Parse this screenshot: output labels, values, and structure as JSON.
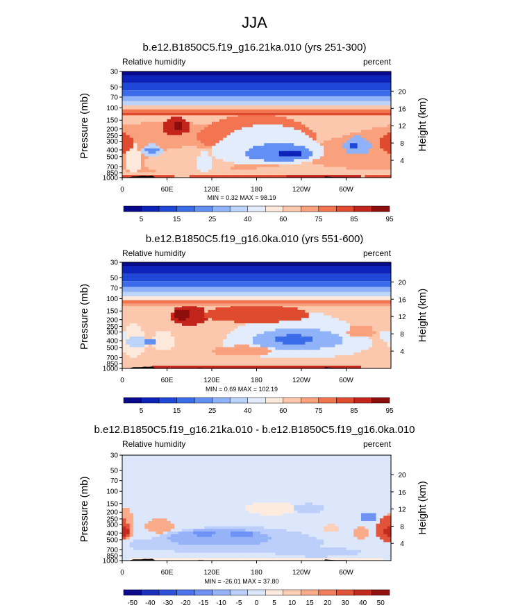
{
  "page": {
    "title": "JJA"
  },
  "palettes": {
    "rh": [
      "#08088c",
      "#0d22b8",
      "#1f48d8",
      "#3a6cea",
      "#628ff4",
      "#8fb2f8",
      "#bcd3fa",
      "#e3ecfb",
      "#fde9dc",
      "#fcc8ad",
      "#f9a07d",
      "#f27450",
      "#e04a2f",
      "#c3241b",
      "#8e0d0d"
    ],
    "diff": [
      "#0a0a8a",
      "#1a2fbd",
      "#2f52dc",
      "#4b73ec",
      "#6f93f4",
      "#97b3f8",
      "#bccffa",
      "#dde7fb",
      "#fdebe0",
      "#fcd0b8",
      "#f9ab8a",
      "#f17f5c",
      "#e2533a",
      "#c52a20",
      "#911010"
    ]
  },
  "chart_data": [
    {
      "type": "heatmap",
      "title": "b.e12.B1850C5.f19_g16.21ka.010 (yrs 251-300)",
      "left_label": "Relative humidity",
      "right_label": "percent",
      "ylabel": "Pressure (mb)",
      "ylabel_right": "Height (km)",
      "x_ticks": [
        "0",
        "60E",
        "120E",
        "180",
        "120W",
        "60W"
      ],
      "x_tick_lons": [
        0,
        60,
        120,
        180,
        240,
        300
      ],
      "xlim": [
        0,
        360
      ],
      "y_ticks": [
        "30",
        "50",
        "70",
        "100",
        "150",
        "200",
        "250",
        "300",
        "400",
        "500",
        "700",
        "850",
        "1000"
      ],
      "y_tick_values": [
        30,
        50,
        70,
        100,
        150,
        200,
        250,
        300,
        400,
        500,
        700,
        850,
        1000
      ],
      "ylim": [
        30,
        1000
      ],
      "height_ticks": [
        "20",
        "16",
        "12",
        "8",
        "4"
      ],
      "height_tick_values": [
        20,
        16,
        12,
        8,
        4
      ],
      "stats": "MIN =   0.32  MAX =  98.19",
      "colorbar_labels": [
        "5",
        "15",
        "25",
        "40",
        "60",
        "75",
        "85",
        "95"
      ],
      "palette": "rh",
      "background_level": 9,
      "features": [
        {
          "lon": 60,
          "p": 490,
          "rlon": 180,
          "rp": 330,
          "v": 10
        },
        {
          "lon": 90,
          "p": 620,
          "rlon": 60,
          "rp": 260,
          "v": 9
        },
        {
          "lon": 40,
          "p": 410,
          "rlon": 14,
          "rp": 80,
          "v": 6
        },
        {
          "lon": 40,
          "p": 410,
          "rlon": 8,
          "rp": 40,
          "v": 4
        },
        {
          "lon": 15,
          "p": 600,
          "rlon": 10,
          "rp": 280,
          "v": 8
        },
        {
          "lon": 180,
          "p": 260,
          "rlon": 80,
          "rp": 140,
          "v": 11
        },
        {
          "lon": 72,
          "p": 190,
          "rlon": 18,
          "rp": 55,
          "v": 13
        },
        {
          "lon": 75,
          "p": 180,
          "rlon": 7,
          "rp": 30,
          "v": 14
        },
        {
          "lon": 195,
          "p": 420,
          "rlon": 75,
          "rp": 250,
          "v": 7
        },
        {
          "lon": 210,
          "p": 450,
          "rlon": 45,
          "rp": 130,
          "v": 4
        },
        {
          "lon": 225,
          "p": 460,
          "rlon": 18,
          "rp": 50,
          "v": 1
        },
        {
          "lon": 110,
          "p": 620,
          "rlon": 10,
          "rp": 200,
          "v": 7
        },
        {
          "lon": 360,
          "p": 330,
          "rlon": 14,
          "rp": 110,
          "v": 12
        },
        {
          "lon": 315,
          "p": 360,
          "rlon": 18,
          "rp": 110,
          "v": 5
        },
        {
          "lon": 310,
          "p": 360,
          "rlon": 6,
          "rp": 40,
          "v": 2
        },
        {
          "lon": 180,
          "p": 950,
          "rlon": 90,
          "rp": 70,
          "v": 12
        },
        {
          "lon": 30,
          "p": 960,
          "rlon": 40,
          "rp": 60,
          "v": 12
        },
        {
          "lon": 270,
          "p": 960,
          "rlon": 50,
          "rp": 50,
          "v": 13
        },
        {
          "lon": 350,
          "p": 950,
          "rlon": 25,
          "rp": 60,
          "v": 12
        }
      ],
      "top_band": [
        {
          "p": 34,
          "v": 0
        },
        {
          "p": 44,
          "v": 1
        },
        {
          "p": 56,
          "v": 2
        },
        {
          "p": 68,
          "v": 3
        },
        {
          "p": 80,
          "v": 5
        },
        {
          "p": 92,
          "v": 6
        },
        {
          "p": 105,
          "v": 9
        },
        {
          "p": 118,
          "v": 11
        },
        {
          "p": 128,
          "v": 12
        }
      ],
      "topography": [
        [
          10,
          980
        ],
        [
          15,
          960
        ],
        [
          20,
          960
        ],
        [
          25,
          945
        ],
        [
          30,
          945
        ],
        [
          35,
          950
        ],
        [
          40,
          940
        ],
        [
          45,
          1000
        ],
        [
          270,
          1000
        ],
        [
          272,
          960
        ],
        [
          278,
          975
        ],
        [
          285,
          985
        ],
        [
          300,
          985
        ],
        [
          305,
          1000
        ]
      ]
    },
    {
      "type": "heatmap",
      "title": "b.e12.B1850C5.f19_g16.0ka.010 (yrs 551-600)",
      "left_label": "Relative humidity",
      "right_label": "percent",
      "ylabel": "Pressure (mb)",
      "ylabel_right": "Height (km)",
      "x_ticks": [
        "0",
        "60E",
        "120E",
        "180",
        "120W",
        "60W"
      ],
      "x_tick_lons": [
        0,
        60,
        120,
        180,
        240,
        300
      ],
      "xlim": [
        0,
        360
      ],
      "y_ticks": [
        "30",
        "50",
        "70",
        "100",
        "150",
        "200",
        "250",
        "300",
        "400",
        "500",
        "700",
        "850",
        "1000"
      ],
      "y_tick_values": [
        30,
        50,
        70,
        100,
        150,
        200,
        250,
        300,
        400,
        500,
        700,
        850,
        1000
      ],
      "ylim": [
        30,
        1000
      ],
      "height_ticks": [
        "20",
        "16",
        "12",
        "8",
        "4"
      ],
      "height_tick_values": [
        20,
        16,
        12,
        8,
        4
      ],
      "stats": "MIN =   0.69  MAX = 102.19",
      "colorbar_labels": [
        "5",
        "15",
        "25",
        "40",
        "60",
        "75",
        "85",
        "95"
      ],
      "palette": "rh",
      "background_level": 9,
      "features": [
        {
          "lon": 15,
          "p": 450,
          "rlon": 18,
          "rp": 230,
          "v": 8
        },
        {
          "lon": 55,
          "p": 420,
          "rlon": 14,
          "rp": 140,
          "v": 8
        },
        {
          "lon": 20,
          "p": 420,
          "rlon": 15,
          "rp": 70,
          "v": 6
        },
        {
          "lon": 38,
          "p": 420,
          "rlon": 7,
          "rp": 40,
          "v": 4
        },
        {
          "lon": 235,
          "p": 430,
          "rlon": 100,
          "rp": 280,
          "v": 7
        },
        {
          "lon": 235,
          "p": 400,
          "rlon": 60,
          "rp": 140,
          "v": 5
        },
        {
          "lon": 230,
          "p": 390,
          "rlon": 25,
          "rp": 60,
          "v": 3
        },
        {
          "lon": 90,
          "p": 180,
          "rlon": 25,
          "rp": 60,
          "v": 13
        },
        {
          "lon": 80,
          "p": 170,
          "rlon": 12,
          "rp": 30,
          "v": 14
        },
        {
          "lon": 180,
          "p": 170,
          "rlon": 70,
          "rp": 50,
          "v": 12
        },
        {
          "lon": 160,
          "p": 570,
          "rlon": 40,
          "rp": 100,
          "v": 10
        },
        {
          "lon": 180,
          "p": 960,
          "rlon": 140,
          "rp": 60,
          "v": 13
        },
        {
          "lon": 320,
          "p": 300,
          "rlon": 18,
          "rp": 60,
          "v": 10
        },
        {
          "lon": 355,
          "p": 350,
          "rlon": 12,
          "rp": 60,
          "v": 7
        }
      ],
      "top_band": [
        {
          "p": 34,
          "v": 0
        },
        {
          "p": 44,
          "v": 1
        },
        {
          "p": 56,
          "v": 2
        },
        {
          "p": 68,
          "v": 3
        },
        {
          "p": 80,
          "v": 5
        },
        {
          "p": 92,
          "v": 6
        },
        {
          "p": 105,
          "v": 8
        },
        {
          "p": 118,
          "v": 11
        },
        {
          "p": 128,
          "v": 10
        }
      ],
      "topography": [
        [
          10,
          990
        ],
        [
          15,
          960
        ],
        [
          25,
          960
        ],
        [
          30,
          945
        ],
        [
          35,
          950
        ],
        [
          40,
          940
        ],
        [
          45,
          1000
        ],
        [
          100,
          1000
        ],
        [
          102,
          985
        ],
        [
          108,
          985
        ],
        [
          110,
          990
        ],
        [
          125,
          990
        ],
        [
          128,
          1000
        ],
        [
          270,
          1000
        ],
        [
          272,
          960
        ],
        [
          278,
          975
        ],
        [
          285,
          985
        ],
        [
          300,
          985
        ],
        [
          305,
          1000
        ]
      ]
    },
    {
      "type": "heatmap",
      "title": "b.e12.B1850C5.f19_g16.21ka.010 - b.e12.B1850C5.f19_g16.0ka.010",
      "left_label": "Relative humidity",
      "right_label": "percent",
      "ylabel": "Pressure (mb)",
      "ylabel_right": "Height (km)",
      "x_ticks": [
        "0",
        "60E",
        "120E",
        "180",
        "120W",
        "60W"
      ],
      "x_tick_lons": [
        0,
        60,
        120,
        180,
        240,
        300
      ],
      "xlim": [
        0,
        360
      ],
      "y_ticks": [
        "30",
        "50",
        "70",
        "100",
        "150",
        "200",
        "250",
        "300",
        "400",
        "500",
        "700",
        "850",
        "1000"
      ],
      "y_tick_values": [
        30,
        50,
        70,
        100,
        150,
        200,
        250,
        300,
        400,
        500,
        700,
        850,
        1000
      ],
      "ylim": [
        30,
        1000
      ],
      "height_ticks": [
        "20",
        "16",
        "12",
        "8",
        "4"
      ],
      "height_tick_values": [
        20,
        16,
        12,
        8,
        4
      ],
      "stats": "MIN = -26.01  MAX =  37.80",
      "colorbar_labels": [
        "-50",
        "-40",
        "-30",
        "-20",
        "-15",
        "-10",
        "-5",
        "0",
        "5",
        "10",
        "15",
        "20",
        "30",
        "40",
        "50"
      ],
      "palette": "diff",
      "background_level": 7,
      "features": [
        {
          "lon": 150,
          "p": 560,
          "rlon": 120,
          "rp": 240,
          "v": 6
        },
        {
          "lon": 130,
          "p": 480,
          "rlon": 70,
          "rp": 130,
          "v": 5
        },
        {
          "lon": 110,
          "p": 410,
          "rlon": 14,
          "rp": 45,
          "v": 4
        },
        {
          "lon": 160,
          "p": 420,
          "rlon": 16,
          "rp": 50,
          "v": 4
        },
        {
          "lon": 30,
          "p": 600,
          "rlon": 22,
          "rp": 120,
          "v": 6
        },
        {
          "lon": 50,
          "p": 320,
          "rlon": 20,
          "rp": 80,
          "v": 10
        },
        {
          "lon": 5,
          "p": 330,
          "rlon": 12,
          "rp": 160,
          "v": 10
        },
        {
          "lon": 355,
          "p": 380,
          "rlon": 16,
          "rp": 150,
          "v": 12
        },
        {
          "lon": 360,
          "p": 390,
          "rlon": 8,
          "rp": 80,
          "v": 13
        },
        {
          "lon": 330,
          "p": 240,
          "rlon": 10,
          "rp": 40,
          "v": 4
        },
        {
          "lon": 320,
          "p": 400,
          "rlon": 10,
          "rp": 90,
          "v": 10
        },
        {
          "lon": 200,
          "p": 180,
          "rlon": 35,
          "rp": 40,
          "v": 8
        },
        {
          "lon": 250,
          "p": 180,
          "rlon": 20,
          "rp": 30,
          "v": 6
        },
        {
          "lon": 280,
          "p": 340,
          "rlon": 10,
          "rp": 50,
          "v": 9
        },
        {
          "lon": 260,
          "p": 760,
          "rlon": 60,
          "rp": 120,
          "v": 6
        },
        {
          "lon": 180,
          "p": 960,
          "rlon": 170,
          "rp": 40,
          "v": 8
        }
      ],
      "top_band": [
        {
          "p": 34,
          "v": 7
        },
        {
          "p": 60,
          "v": 7
        }
      ],
      "topography": [
        [
          10,
          990
        ],
        [
          15,
          960
        ],
        [
          25,
          960
        ],
        [
          30,
          945
        ],
        [
          35,
          950
        ],
        [
          40,
          940
        ],
        [
          45,
          1000
        ],
        [
          100,
          1000
        ],
        [
          102,
          985
        ],
        [
          108,
          985
        ],
        [
          110,
          990
        ],
        [
          125,
          990
        ],
        [
          128,
          1000
        ],
        [
          270,
          1000
        ],
        [
          272,
          960
        ],
        [
          278,
          975
        ],
        [
          285,
          985
        ],
        [
          300,
          985
        ],
        [
          305,
          1000
        ]
      ]
    }
  ]
}
